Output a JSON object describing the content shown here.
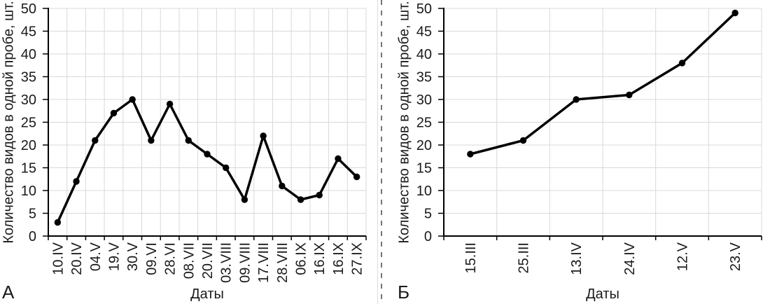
{
  "figure": {
    "background": "#ffffff"
  },
  "styles": {
    "grid_color": "#d9d9d9",
    "axis_color": "#000000",
    "text_color": "#1a1a1a",
    "series_color": "#000000",
    "divider_color": "#757575",
    "divider_shadow_color": "#dcdcdc"
  },
  "chart_data": [
    {
      "type": "line",
      "panel_label": "А",
      "title": "",
      "categories": [
        "10.IV",
        "20.IV",
        "04.V",
        "19.V",
        "30.V",
        "09.VI",
        "28.VI",
        "08.VII",
        "20.VII",
        "03.VIII",
        "09.VIII",
        "17.VIII",
        "28.VIII",
        "06.IX",
        "16.IX",
        "16.IX",
        "27.IX"
      ],
      "values": [
        3,
        12,
        21,
        27,
        30,
        21,
        29,
        21,
        18,
        15,
        8,
        22,
        11,
        8,
        9,
        17,
        13
      ],
      "xlabel": "Даты",
      "ylabel": "Количество видов в одной пробе, шт.",
      "ylim": [
        0,
        50
      ],
      "yticks": [
        0,
        5,
        10,
        15,
        20,
        25,
        30,
        35,
        40,
        45,
        50
      ],
      "grid": true,
      "legend": "none",
      "marker": "circle"
    },
    {
      "type": "line",
      "panel_label": "Б",
      "title": "",
      "categories": [
        "15.III",
        "25.III",
        "13.IV",
        "24.IV",
        "12.V",
        "23.V"
      ],
      "values": [
        18,
        21,
        30,
        31,
        38,
        49
      ],
      "xlabel": "Даты",
      "ylabel": "Количество видов в одной пробе, шт.",
      "ylim": [
        0,
        50
      ],
      "yticks": [
        0,
        5,
        10,
        15,
        20,
        25,
        30,
        35,
        40,
        45,
        50
      ],
      "grid": true,
      "legend": "none",
      "marker": "circle"
    }
  ]
}
